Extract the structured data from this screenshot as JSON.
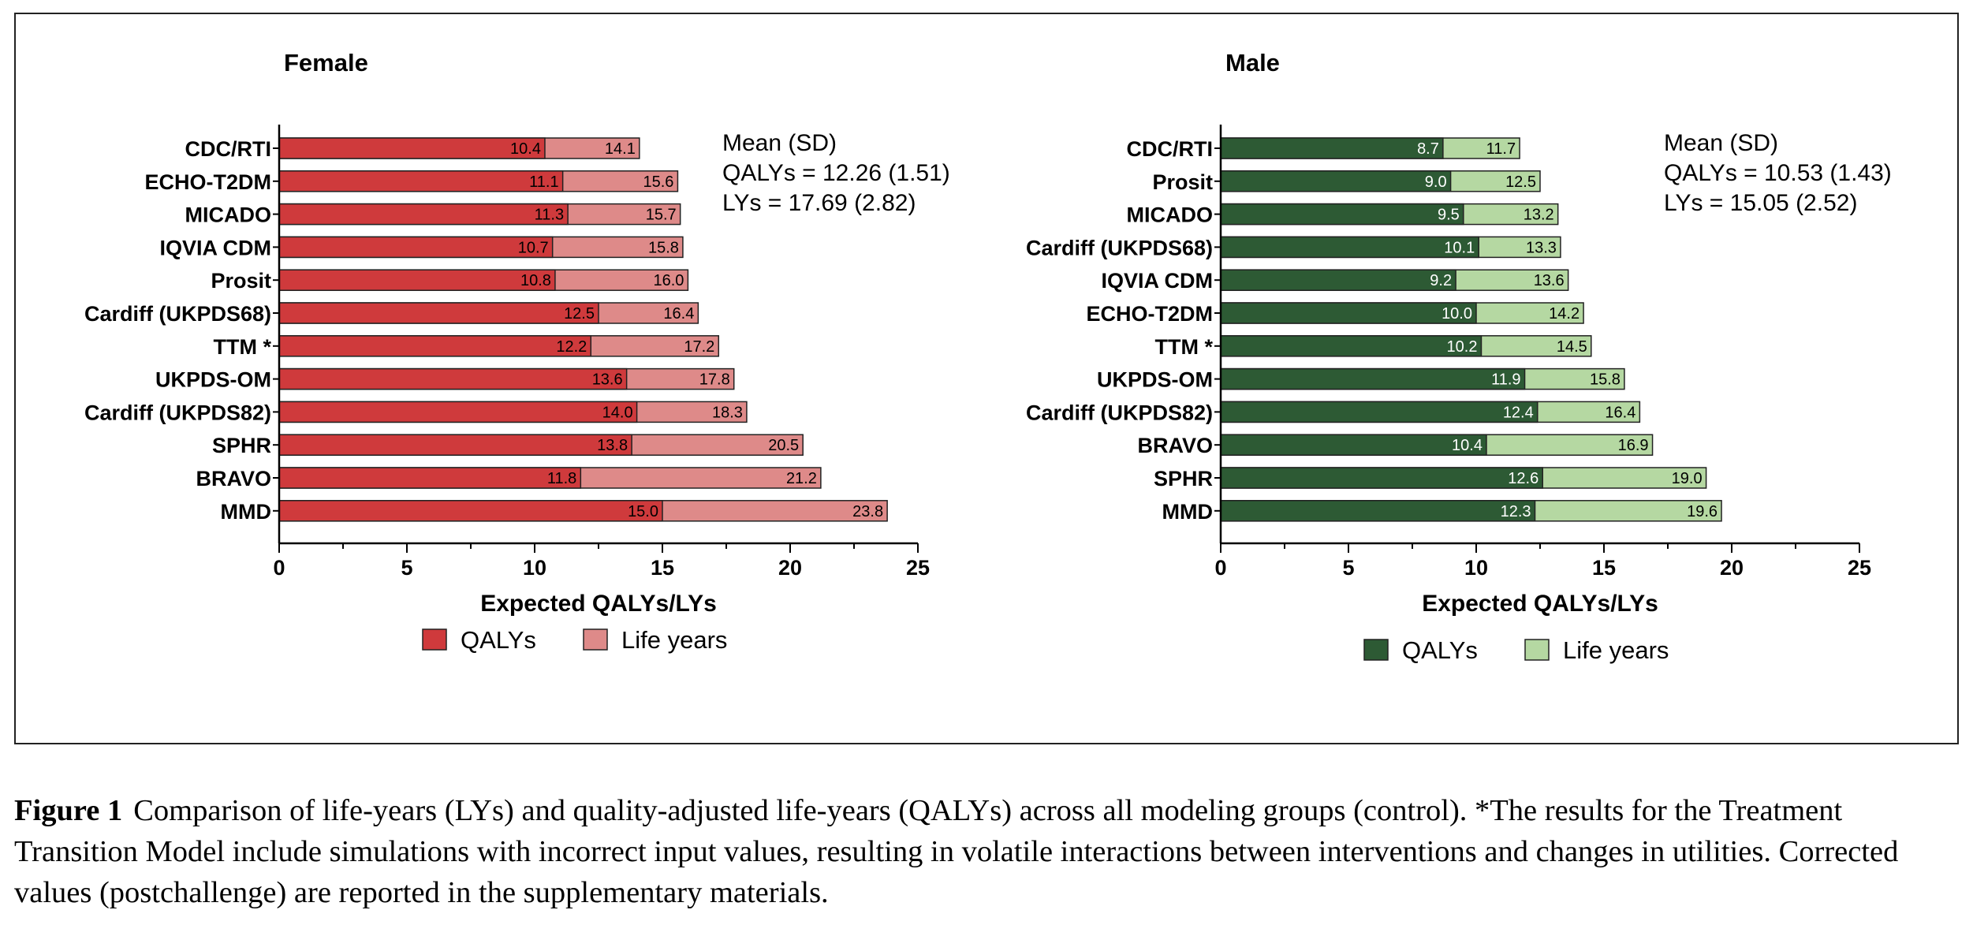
{
  "chart_data": [
    {
      "type": "bar",
      "orientation": "horizontal",
      "stacked": "overlay",
      "title": "Female",
      "categories": [
        "CDC/RTI",
        "ECHO-T2DM",
        "MICADO",
        "IQVIA CDM",
        "Prosit",
        "Cardiff (UKPDS68)",
        "TTM *",
        "UKPDS-OM",
        "Cardiff (UKPDS82)",
        "SPHR",
        "BRAVO",
        "MMD"
      ],
      "series": [
        {
          "name": "QALYs",
          "values": [
            10.4,
            11.1,
            11.3,
            10.7,
            10.8,
            12.5,
            12.2,
            13.6,
            14.0,
            13.8,
            11.8,
            15.0
          ],
          "color": "#cf3a3c",
          "label_color": "#000000"
        },
        {
          "name": "Life years",
          "values": [
            14.1,
            15.6,
            15.7,
            15.8,
            16.0,
            16.4,
            17.2,
            17.8,
            18.3,
            20.5,
            21.2,
            23.8
          ],
          "color": "#de8a89",
          "label_color": "#000000"
        }
      ],
      "xlabel": "Expected QALYs/LYs",
      "xlim": [
        0,
        25
      ],
      "xticks": [
        "0",
        "5",
        "10",
        "15",
        "20",
        "25"
      ],
      "stats_box": [
        "Mean (SD)",
        "QALYs = 12.26 (1.51)",
        "LYs = 17.69 (2.82)"
      ],
      "legend_position": "bottom",
      "legend": [
        "QALYs",
        "Life years"
      ]
    },
    {
      "type": "bar",
      "orientation": "horizontal",
      "stacked": "overlay",
      "title": "Male",
      "categories": [
        "CDC/RTI",
        "Prosit",
        "MICADO",
        "Cardiff (UKPDS68)",
        "IQVIA CDM",
        "ECHO-T2DM",
        "TTM *",
        "UKPDS-OM",
        "Cardiff (UKPDS82)",
        "BRAVO",
        "SPHR",
        "MMD"
      ],
      "series": [
        {
          "name": "QALYs",
          "values": [
            8.7,
            9.0,
            9.5,
            10.1,
            9.2,
            10.0,
            10.2,
            11.9,
            12.4,
            10.4,
            12.6,
            12.3
          ],
          "color": "#2d5a34",
          "label_color": "#ffffff"
        },
        {
          "name": "Life years",
          "values": [
            11.7,
            12.5,
            13.2,
            13.3,
            13.6,
            14.2,
            14.5,
            15.8,
            16.4,
            16.9,
            19.0,
            19.6
          ],
          "color": "#b5d8a2",
          "label_color": "#000000"
        }
      ],
      "xlabel": "Expected QALYs/LYs",
      "xlim": [
        0,
        25
      ],
      "xticks": [
        "0",
        "5",
        "10",
        "15",
        "20",
        "25"
      ],
      "stats_box": [
        "Mean (SD)",
        "QALYs = 10.53 (1.43)",
        "LYs = 15.05 (2.52)"
      ],
      "legend_position": "bottom",
      "legend": [
        "QALYs",
        "Life years"
      ]
    }
  ],
  "caption": {
    "label": "Figure 1",
    "text": "Comparison of life-years (LYs) and quality-adjusted life-years (QALYs) across all modeling groups (control). *The results for the Treatment Transition Model include simulations with incorrect input values, resulting in volatile interactions between interventions and changes in utilities. Corrected values (postchallenge) are reported in the supplementary materials."
  }
}
